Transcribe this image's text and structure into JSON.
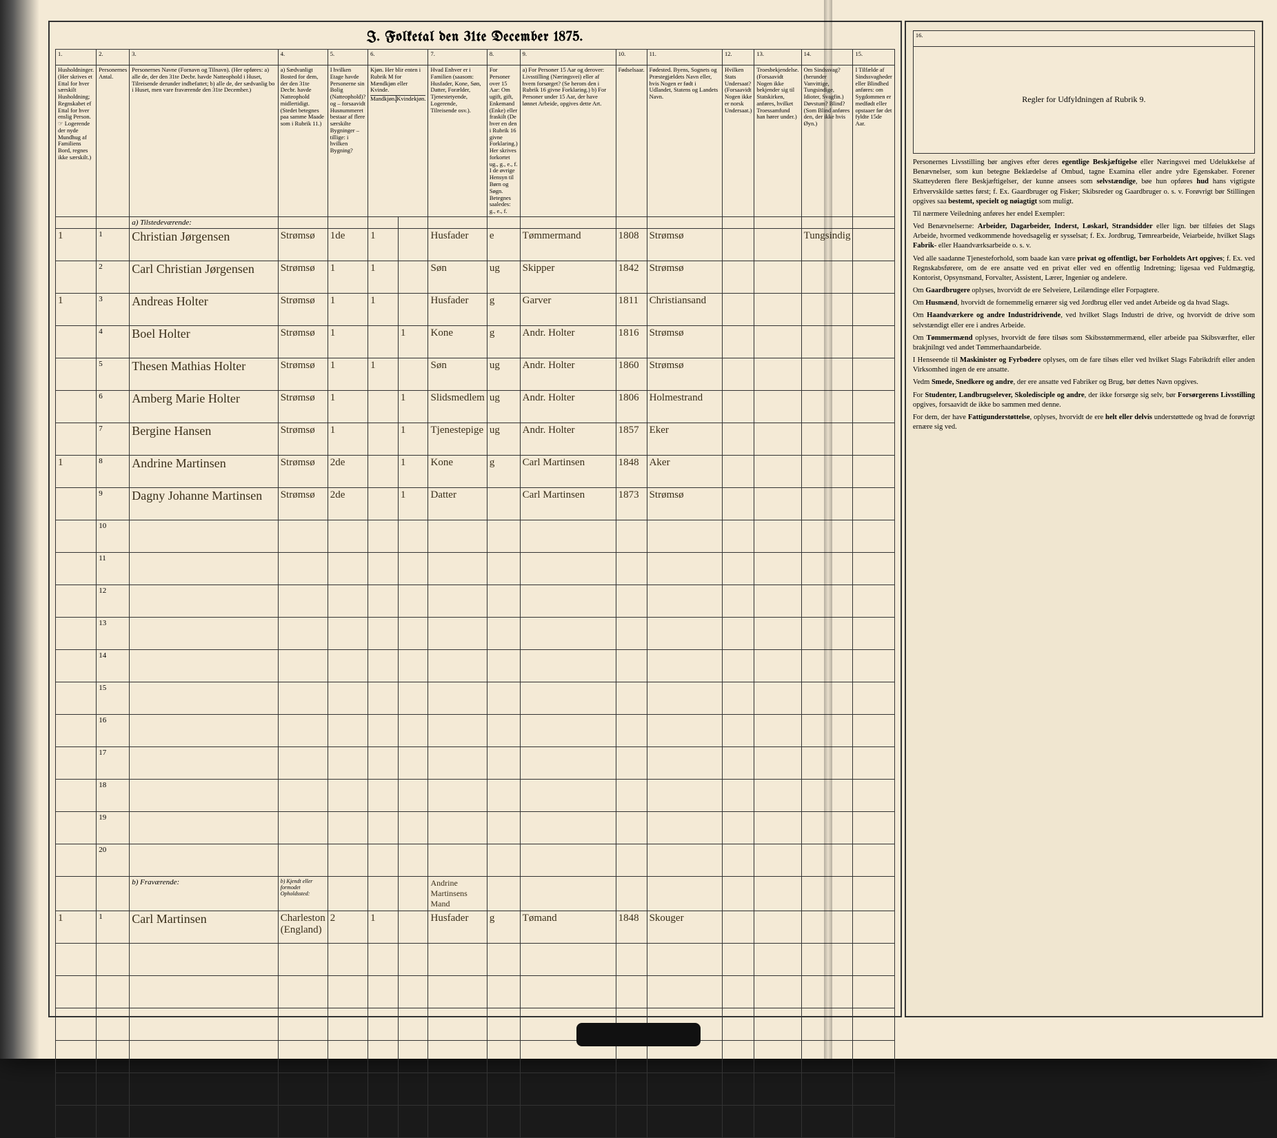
{
  "title": "I.  Folketal den 31te December 1875.",
  "colnums": [
    "1.",
    "2.",
    "3.",
    "4.",
    "5.",
    "6.",
    "7.",
    "8.",
    "9.",
    "10.",
    "11.",
    "12.",
    "13.",
    "14.",
    "15.",
    "16."
  ],
  "headers": {
    "c1": "Husholdninger. (Her skrives et Ettal for hver særskilt Husholdning; Regnskabet ef Ettal for hver enslig Person. ☞ Logerende der nyde Mundhug af Familiens Bord, regnes ikke særskilt.)",
    "c2": "Personernes Antal.",
    "c3": "Personernes Navne (Fornavn og Tilnavn).\n(Her opføres:\na) alle de, der den 31te Decbr. havde Natteophold i Huset, Tilreisende derunder indbefattet;\nb) alle de, der sædvanlig bo i Huset, men vare fraværende den 31te December.)",
    "c4": "a) Sædvanligt Bosted for dem, der den 31te Decbr. havde Natteophold midlertidigt. (Stedet betegnes paa samme Maade som i Rubrik 11.)",
    "c5": "I hvilken Etage havde Personerne sin Bolig (Natteophold)? og – forsaavidt Husnummeret bestaar af flere særskilte Bygninger – tillige: i hvilken Bygning?",
    "c6_a": "Kjøn. Her blir enten i Rubrik M for Mændkjøn eller Kvinde.",
    "c6_b": "Mandkjøn.",
    "c6_c": "Kvindekjøn.",
    "c7": "Hvad Enhver er i Familien (saasom: Husfader, Kone, Søn, Datter, Forælder, Tjenestetyende, Logerende, Tilreisende osv.).",
    "c8": "For Personer over 15 Aar: Om ugift, gift, Enkemand (Enke) eller fraskilt (De hver en den i Rubrik 16 givne Forklaring.) Her skrives forkortet ug., g., e., f. I de øvrige Hensyn til Børn og Søgn. Betegnes saaledes: g., e., f.",
    "c9": "a) For Personer 15 Aar og derover: Livsstilling (Næringsvei) eller af hvem forsørget? (Se herom den i Rubrik 16 givne Forklaring.)\nb) For Personer under 15 Aar, der have lønnet Arbeide, opgives dette Art.",
    "c10": "Fødselsaar.",
    "c11": "Fødested.\nByens, Sognets og Præstegjældets Navn eller, hvis Nogen er født i Udlandet, Statens og Landets Navn.",
    "c12": "Hvilken Stats Undersaat? (Forsaavidt Nogen ikke er norsk Undersaat.)",
    "c13": "Troesbekjendelse. (Forsaavidt Nogen ikke bekjender sig til Statskirken, anføres, hvilket Troessamfund han hører under.)",
    "c14": "Om Sindssvag? (herunder Vanvittige, Tungsindige, Idioter, Svagfin.) Døvstum? Blind? (Som Blind anføres den, der ikke hvis Øyn.)",
    "c15": "I Tilfælde af Sindssvagheder eller Blindhed anføres: om Sygdommen er medfødt eller opstaaer før det fyldte 15de Aar.",
    "c16": "Regler for Udfyldningen\naf\nRubrik 9."
  },
  "section_a": "a) Tilstedeværende:",
  "section_b": "b) Fraværende:",
  "section_b_note": "b) Kjendt eller formodet Opholdssted:",
  "rows": [
    {
      "n": "1",
      "hh": "1",
      "name": "Christian Jørgensen",
      "res": "Strømsø",
      "floor": "1de",
      "m": "1",
      "fk": "",
      "rel": "Husfader",
      "ms": "e",
      "occ": "Tømmermand",
      "yr": "1808",
      "bp": "Strømsø",
      "note": "Tungsindig"
    },
    {
      "n": "2",
      "hh": "",
      "name": "Carl Christian Jørgensen",
      "res": "Strømsø",
      "floor": "1",
      "m": "1",
      "fk": "",
      "rel": "Søn",
      "ms": "ug",
      "occ": "Skipper",
      "yr": "1842",
      "bp": "Strømsø",
      "note": ""
    },
    {
      "n": "3",
      "hh": "1",
      "name": "Andreas Holter",
      "res": "Strømsø",
      "floor": "1",
      "m": "1",
      "fk": "",
      "rel": "Husfader",
      "ms": "g",
      "occ": "Garver",
      "yr": "1811",
      "bp": "Christiansand",
      "note": ""
    },
    {
      "n": "4",
      "hh": "",
      "name": "Boel Holter",
      "res": "Strømsø",
      "floor": "1",
      "m": "",
      "fk": "1",
      "rel": "Kone",
      "ms": "g",
      "occ": "Andr. Holter",
      "yr": "1816",
      "bp": "Strømsø",
      "note": ""
    },
    {
      "n": "5",
      "hh": "",
      "name": "Thesen Mathias Holter",
      "res": "Strømsø",
      "floor": "1",
      "m": "1",
      "fk": "",
      "rel": "Søn",
      "ms": "ug",
      "occ": "Andr. Holter",
      "yr": "1860",
      "bp": "Strømsø",
      "note": ""
    },
    {
      "n": "6",
      "hh": "",
      "name": "Amberg Marie Holter",
      "res": "Strømsø",
      "floor": "1",
      "m": "",
      "fk": "1",
      "rel": "Slidsmedlem",
      "ms": "ug",
      "occ": "Andr. Holter",
      "yr": "1806",
      "bp": "Holmestrand",
      "note": ""
    },
    {
      "n": "7",
      "hh": "",
      "name": "Bergine Hansen",
      "res": "Strømsø",
      "floor": "1",
      "m": "",
      "fk": "1",
      "rel": "Tjenestepige",
      "ms": "ug",
      "occ": "Andr. Holter",
      "yr": "1857",
      "bp": "Eker",
      "note": ""
    },
    {
      "n": "8",
      "hh": "1",
      "name": "Andrine Martinsen",
      "res": "Strømsø",
      "floor": "2de",
      "m": "",
      "fk": "1",
      "rel": "Kone",
      "ms": "g",
      "occ": "Carl Martinsen",
      "yr": "1848",
      "bp": "Aker",
      "note": ""
    },
    {
      "n": "9",
      "hh": "",
      "name": "Dagny Johanne Martinsen",
      "res": "Strømsø",
      "floor": "2de",
      "m": "",
      "fk": "1",
      "rel": "Datter",
      "ms": "",
      "occ": "Carl Martinsen",
      "yr": "1873",
      "bp": "Strømsø",
      "note": ""
    }
  ],
  "empty_rows": [
    "10",
    "11",
    "12",
    "13",
    "14",
    "15",
    "16",
    "17",
    "18",
    "19",
    "20"
  ],
  "absent_rel_note": "Andrine Martinsens Mand",
  "absent": [
    {
      "n": "1",
      "hh": "1",
      "name": "Carl Martinsen",
      "res": "Charleston (England)",
      "floor": "2",
      "m": "1",
      "fk": "",
      "rel": "Husfader",
      "ms": "g",
      "occ": "Tømand",
      "yr": "1848",
      "bp": "Skouger",
      "note": ""
    }
  ],
  "right": {
    "title": "Regler for Udfyldningen af Rubrik 9.",
    "paras": [
      "Personernes Livsstilling bør angives efter deres <b>egentlige Beskjæftigelse</b> eller Næringsvei med Udelukkelse af Benævnelser, som kun betegne Beklædelse af Ombud, tagne Examina eller andre ydre Egenskaber. Forener Skatteyderen flere Beskjæftigelser, der kunne ansees som <b>selvstændige</b>, bøe hun opføres <b>hud</b> hans vigtigste Erhvervskilde sættes først; f. Ex. Gaardbruger og Fisker; Skibsreder og Gaardbruger o. s. v. Forøvrigt bør Stillingen opgives saa <b>bestemt, specielt og nøiagtigt</b> som muligt.",
      "Til nærmere Veiledning anføres her endel Exempler:",
      "Ved Benævnelserne: <b>Arbeider, Dagarbeider, Inderst, Løskarl, Strandsidder</b> eller lign. bør tilføies det Slags Arbeide, hvormed vedkommende hovedsagelig er sysselsat; f. Ex. Jordbrug, Tømrearbeide, Veiarbeide, hvilket Slags <b>Fabrik</b>- eller Haandværksarbeide o. s. v.",
      "Ved alle saadanne Tjenesteforhold, som baade kan være <b>privat og offentligt, bør Forholdets Art opgives</b>; f. Ex. ved Regnskabsførere, om de ere ansatte ved en privat eller ved en offentlig Indretning; ligesaa ved Fuldmægtig, Kontorist, Opsynsmand, Forvalter, Assistent, Lærer, Ingeniør og andelere.",
      "Om <b>Gaardbrugere</b> oplyses, hvorvidt de ere Selveiere, Leilændinge eller Forpagtere.",
      "Om <b>Husmænd</b>, hvorvidt de fornemmelig ernærer sig ved Jordbrug eller ved andet Arbeide og da hvad Slags.",
      "Om <b>Haandværkere og andre Industridrivende</b>, ved hvilket Slags Industri de drive, og hvorvidt de drive som selvstændigt eller ere i andres Arbeide.",
      "Om <b>Tømmermænd</b> oplyses, hvorvidt de føre tilsøs som Skibsstømmermænd, eller arbeide paa Skibsværfter, eller brakjnilngt ved andet Tømmerhaandarbeide.",
      "I Henseende til <b>Maskinister og Fyrbødere</b> oplyses, om de fare tilsøs eller ved hvilket Slags Fabrikdrift eller anden Virksomhed ingen de ere ansatte.",
      "Vedm <b>Smede, Snedkere og andre</b>, der ere ansatte ved Fabriker og Brug, bør dettes Navn opgives.",
      "For <b>Studenter, Landbrugselever, Skoledisciple og andre</b>, der ikke forsørge sig selv, bør <b>Forsørgerens Livsstilling</b> opgives, forsaavidt de ikke bo sammen med denne.",
      "For dem, der have <b>Fattigunderstøttelse</b>, oplyses, hvorvidt de ere <b>helt eller delvis</b> understøttede og hvad de forøvrigt ernære sig ved."
    ]
  }
}
